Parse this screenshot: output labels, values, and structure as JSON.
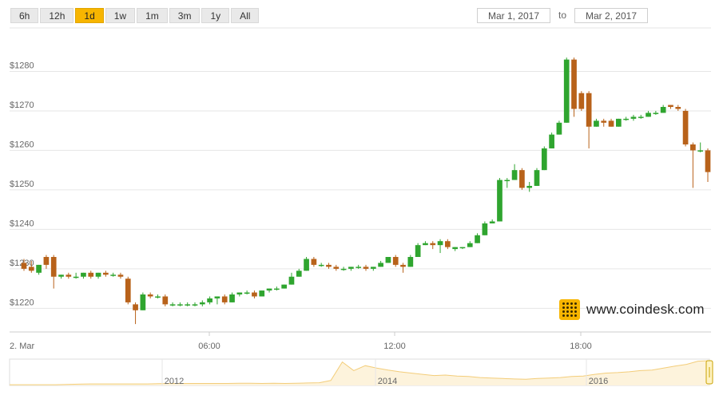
{
  "range_buttons": [
    {
      "label": "6h"
    },
    {
      "label": "12h"
    },
    {
      "label": "1d",
      "active": true
    },
    {
      "label": "1w"
    },
    {
      "label": "1m"
    },
    {
      "label": "3m"
    },
    {
      "label": "1y"
    },
    {
      "label": "All"
    }
  ],
  "date_range": {
    "from": "Mar 1, 2017",
    "to_label": "to",
    "to": "Mar 2, 2017"
  },
  "watermark": {
    "text": "www.coindesk.com"
  },
  "colors": {
    "up": "#2fa52f",
    "down": "#b8621a",
    "accent": "#f7b500",
    "grid": "#e6e6e6",
    "navigator_fill": "#fdf3dc",
    "navigator_line": "#f3cd7a"
  },
  "chart_data": {
    "type": "candlestick",
    "x_start_label": "2. Mar",
    "x_tick_labels": [
      "06:00",
      "12:00",
      "18:00"
    ],
    "y_tick_labels": [
      "$1220",
      "$1230",
      "$1240",
      "$1250",
      "$1260",
      "$1270",
      "$1280"
    ],
    "ylim": [
      1214,
      1290
    ],
    "grid": true,
    "candles": [
      [
        1231.5,
        1232.5,
        1229.5,
        1230
      ],
      [
        1230.5,
        1232,
        1229,
        1229.5
      ],
      [
        1229,
        1231,
        1228.5,
        1231
      ],
      [
        1233,
        1233.5,
        1230,
        1231
      ],
      [
        1233,
        1233.5,
        1225,
        1228
      ],
      [
        1228,
        1228.5,
        1227.5,
        1228.5
      ],
      [
        1228.5,
        1229,
        1227.5,
        1228
      ],
      [
        1228,
        1229,
        1227.5,
        1228
      ],
      [
        1228,
        1229,
        1227.5,
        1229
      ],
      [
        1229,
        1229.5,
        1227.5,
        1228
      ],
      [
        1228,
        1229,
        1227.5,
        1229
      ],
      [
        1229,
        1229.5,
        1228,
        1228.5
      ],
      [
        1228.5,
        1229,
        1228,
        1228.5
      ],
      [
        1228.5,
        1229,
        1227.5,
        1228
      ],
      [
        1227.5,
        1228,
        1221,
        1221.5
      ],
      [
        1221,
        1221.5,
        1216,
        1219.5
      ],
      [
        1219.5,
        1224,
        1219.5,
        1223.5
      ],
      [
        1223.5,
        1224,
        1222.5,
        1223
      ],
      [
        1223,
        1223.5,
        1222.5,
        1223
      ],
      [
        1223,
        1223.5,
        1220.5,
        1221
      ],
      [
        1221,
        1221.5,
        1220.5,
        1221
      ],
      [
        1221,
        1221.5,
        1220.5,
        1221
      ],
      [
        1221,
        1221.5,
        1220.5,
        1221
      ],
      [
        1221,
        1221.5,
        1220.5,
        1221
      ],
      [
        1221,
        1222,
        1220.5,
        1221.5
      ],
      [
        1221.5,
        1223,
        1221,
        1222.5
      ],
      [
        1222.5,
        1223,
        1221,
        1223
      ],
      [
        1223,
        1223.5,
        1221,
        1221.5
      ],
      [
        1221.5,
        1224,
        1221.5,
        1223.5
      ],
      [
        1223.5,
        1224,
        1223,
        1224
      ],
      [
        1224,
        1224.5,
        1223.5,
        1224
      ],
      [
        1224,
        1224.5,
        1222.5,
        1223
      ],
      [
        1223,
        1224.5,
        1223,
        1224.5
      ],
      [
        1224.5,
        1225,
        1224,
        1225
      ],
      [
        1225,
        1225.5,
        1224.5,
        1225
      ],
      [
        1225,
        1226,
        1225,
        1226
      ],
      [
        1226,
        1229,
        1226,
        1228
      ],
      [
        1228,
        1230,
        1228,
        1229.5
      ],
      [
        1229.5,
        1233,
        1229.5,
        1232.5
      ],
      [
        1232.5,
        1233,
        1230.5,
        1231
      ],
      [
        1231,
        1231.5,
        1230.5,
        1231
      ],
      [
        1231,
        1231.5,
        1230,
        1230.5
      ],
      [
        1230.5,
        1231,
        1229.5,
        1230
      ],
      [
        1230,
        1230.5,
        1229.5,
        1230
      ],
      [
        1230,
        1230.5,
        1229.5,
        1230.5
      ],
      [
        1230.5,
        1231,
        1230,
        1230.5
      ],
      [
        1230.5,
        1231,
        1229.5,
        1230
      ],
      [
        1230,
        1230.5,
        1229.5,
        1230.5
      ],
      [
        1230.5,
        1232,
        1230.5,
        1231.5
      ],
      [
        1231.5,
        1233,
        1231.5,
        1233
      ],
      [
        1233,
        1233.5,
        1230.5,
        1231
      ],
      [
        1231,
        1231.5,
        1229,
        1230.5
      ],
      [
        1230.5,
        1233.5,
        1230.5,
        1233
      ],
      [
        1233,
        1236.5,
        1233,
        1236
      ],
      [
        1236,
        1237,
        1236,
        1236.5
      ],
      [
        1236.5,
        1237,
        1235,
        1236
      ],
      [
        1236,
        1237.5,
        1234,
        1237
      ],
      [
        1237,
        1237.5,
        1235,
        1235.5
      ],
      [
        1235,
        1235.5,
        1234.5,
        1235.5
      ],
      [
        1235.5,
        1235.5,
        1235,
        1235.5
      ],
      [
        1235.5,
        1237,
        1235.5,
        1236.5
      ],
      [
        1236.5,
        1239,
        1236.5,
        1238.5
      ],
      [
        1238.5,
        1242,
        1238.5,
        1241.5
      ],
      [
        1241.5,
        1242.5,
        1241.5,
        1242
      ],
      [
        1242,
        1253,
        1242,
        1252.5
      ],
      [
        1252.5,
        1253,
        1250.5,
        1252.5
      ],
      [
        1252.5,
        1256.5,
        1252.5,
        1255
      ],
      [
        1255,
        1255.5,
        1250,
        1250.5
      ],
      [
        1250.5,
        1252,
        1249.5,
        1251
      ],
      [
        1251,
        1255.5,
        1251,
        1255
      ],
      [
        1255,
        1261,
        1255,
        1260.5
      ],
      [
        1260.5,
        1264.5,
        1260.5,
        1264
      ],
      [
        1264,
        1267.5,
        1264,
        1267
      ],
      [
        1267,
        1283.5,
        1267,
        1283
      ],
      [
        1283,
        1283.5,
        1268.5,
        1270.5
      ],
      [
        1274.5,
        1275,
        1270,
        1270.5
      ],
      [
        1274.5,
        1275,
        1260.5,
        1266
      ],
      [
        1266,
        1268,
        1266,
        1267.5
      ],
      [
        1267.5,
        1268,
        1266,
        1267
      ],
      [
        1267.5,
        1268,
        1266,
        1266
      ],
      [
        1266,
        1268,
        1266,
        1268
      ],
      [
        1268,
        1268.5,
        1267.5,
        1268
      ],
      [
        1268,
        1269,
        1267.5,
        1268.5
      ],
      [
        1268.5,
        1269,
        1268,
        1268.5
      ],
      [
        1268.5,
        1270,
        1268.5,
        1269.5
      ],
      [
        1269.5,
        1270,
        1269,
        1269.5
      ],
      [
        1269.5,
        1271.5,
        1269.5,
        1271
      ],
      [
        1271.5,
        1271.5,
        1270.5,
        1271
      ],
      [
        1271,
        1271.5,
        1270,
        1270.5
      ],
      [
        1270,
        1270.5,
        1261,
        1261.5
      ],
      [
        1261.5,
        1262,
        1250.5,
        1260
      ],
      [
        1260,
        1262,
        1259.5,
        1260
      ],
      [
        1260,
        1260.5,
        1252,
        1254.5
      ]
    ]
  },
  "navigator": {
    "x_tick_labels": [
      "2012",
      "2014",
      "2016"
    ],
    "profile": [
      0.03,
      0.03,
      0.03,
      0.03,
      0.03,
      0.04,
      0.05,
      0.06,
      0.06,
      0.06,
      0.06,
      0.06,
      0.06,
      0.07,
      0.08,
      0.08,
      0.08,
      0.08,
      0.08,
      0.08,
      0.09,
      0.09,
      0.08,
      0.09,
      0.08,
      0.09,
      0.1,
      0.11,
      0.2,
      0.95,
      0.6,
      0.8,
      0.7,
      0.62,
      0.55,
      0.5,
      0.45,
      0.4,
      0.42,
      0.38,
      0.36,
      0.32,
      0.3,
      0.28,
      0.26,
      0.25,
      0.28,
      0.3,
      0.32,
      0.36,
      0.38,
      0.45,
      0.5,
      0.52,
      0.55,
      0.6,
      0.62,
      0.7,
      0.78,
      0.85,
      0.98,
      1.0
    ]
  }
}
